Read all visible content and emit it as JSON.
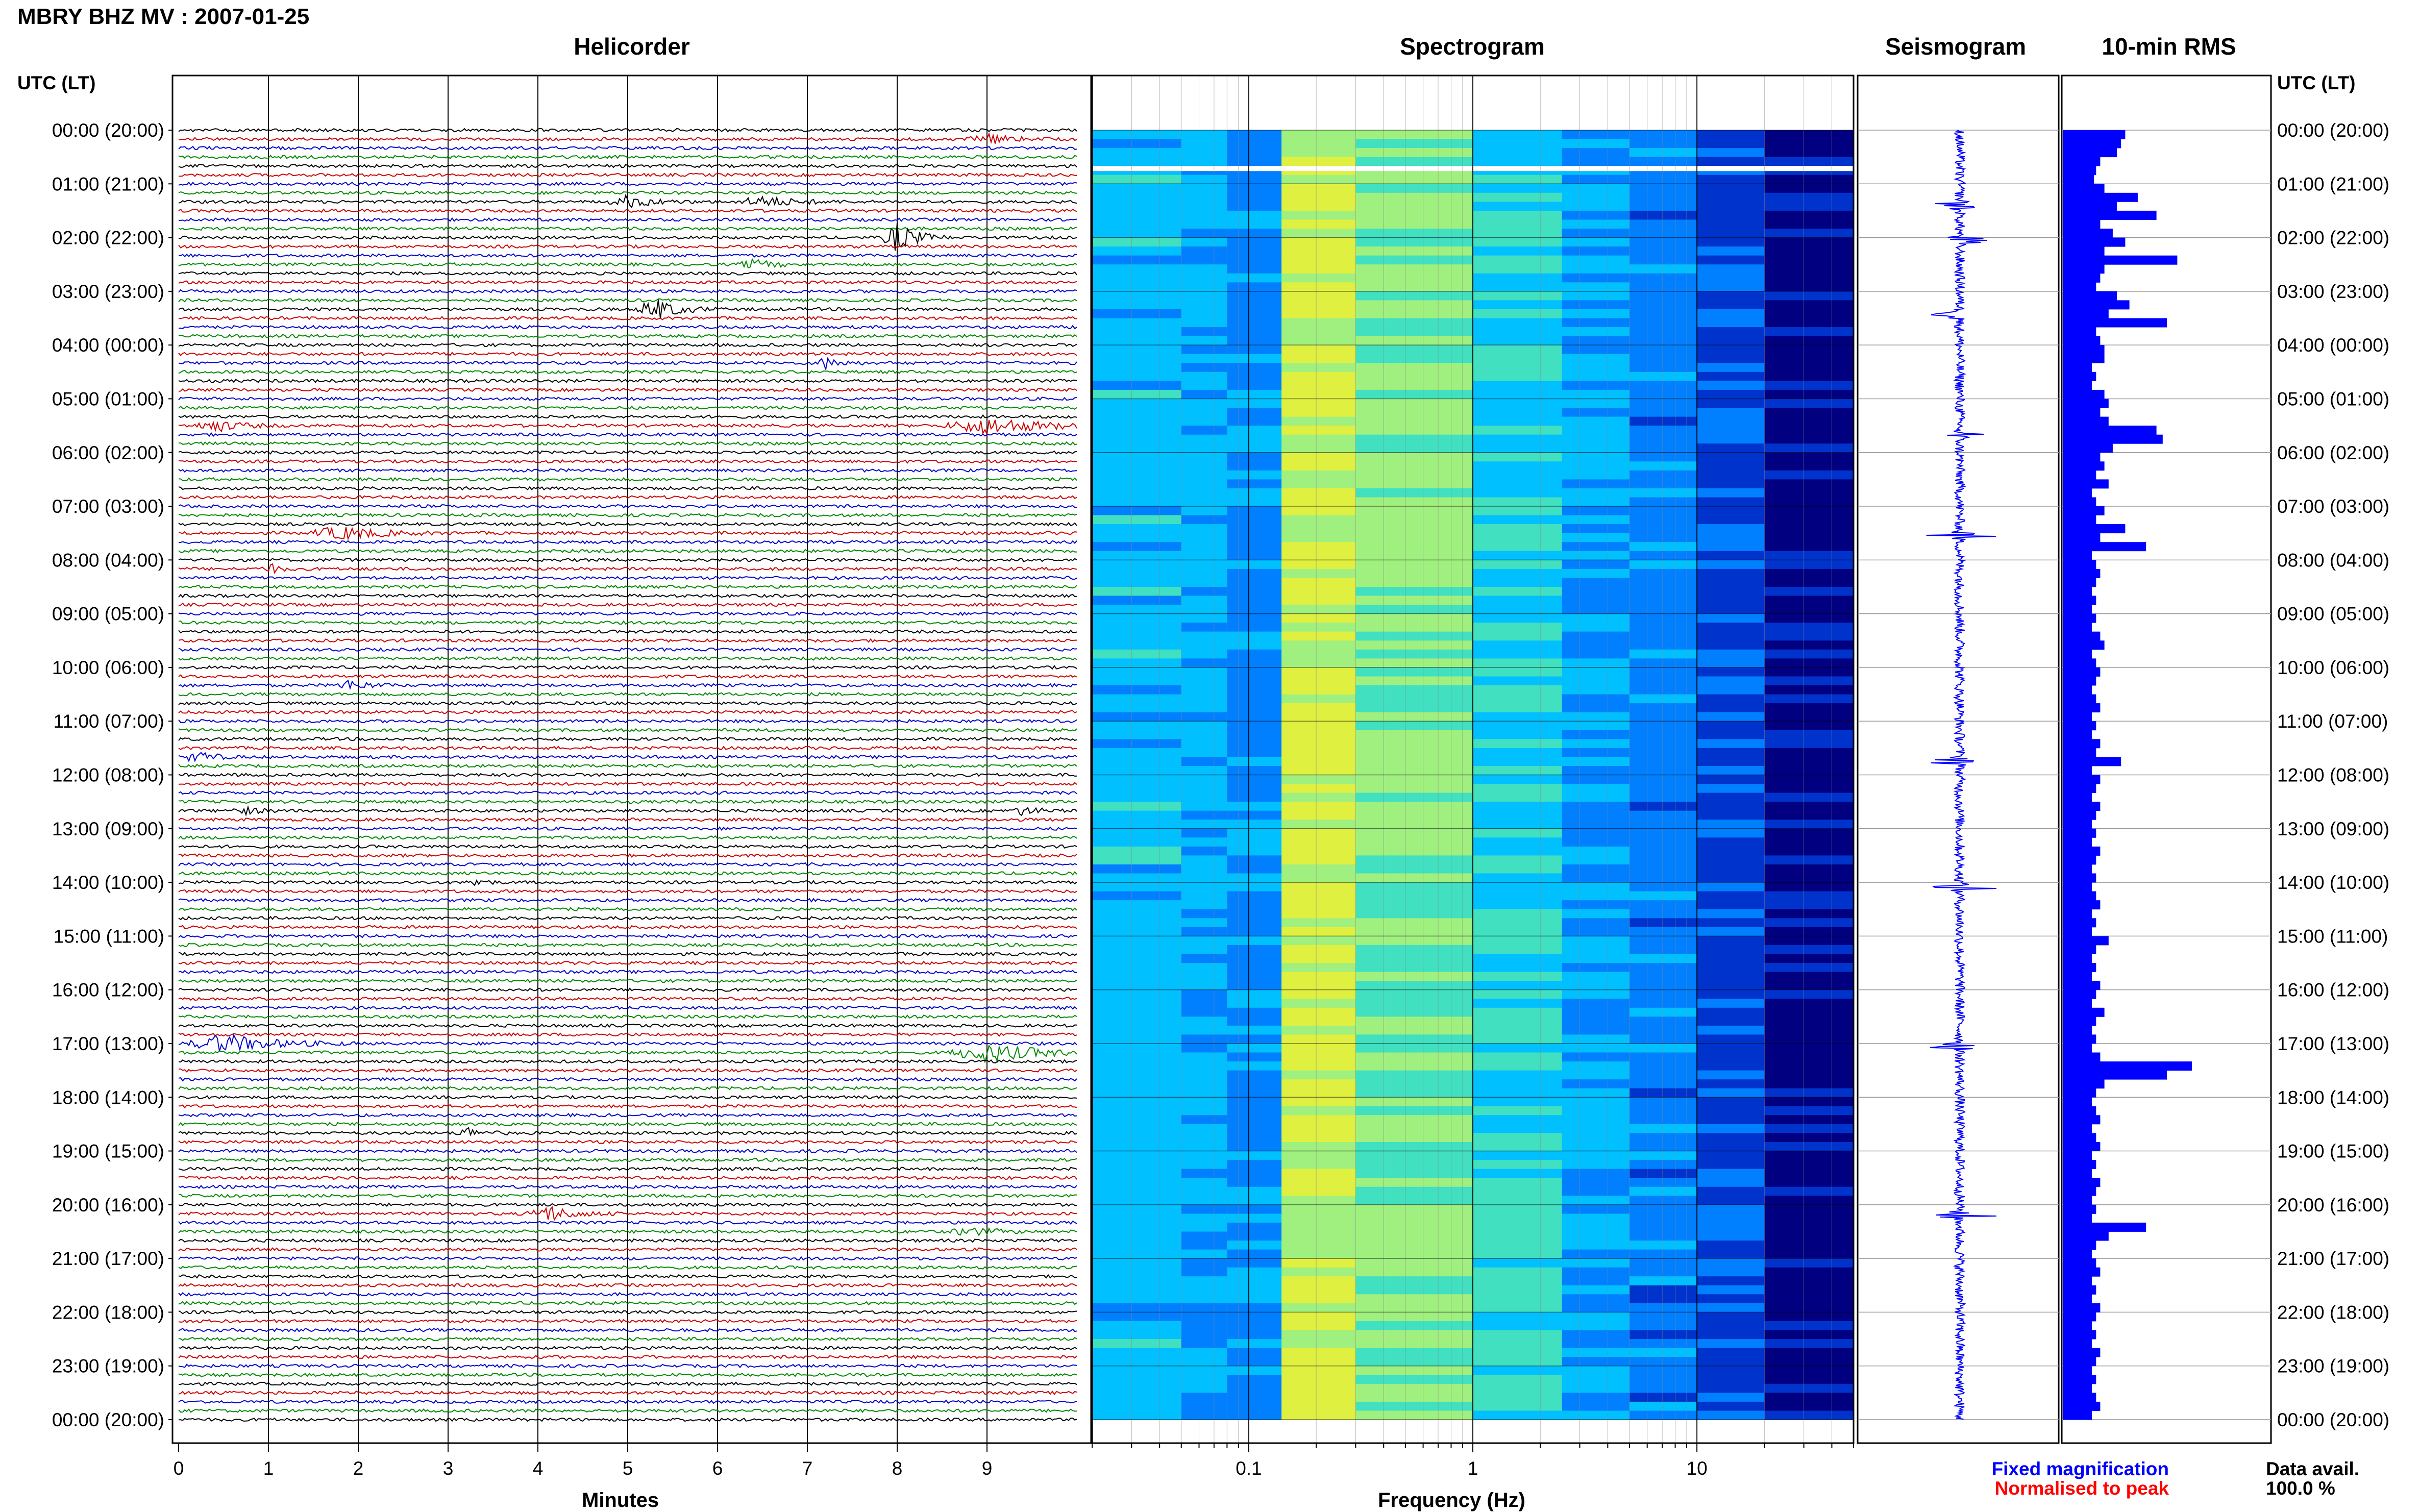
{
  "header": {
    "title": "MBRY BHZ MV : 2007-01-25",
    "utc_label_left": "UTC (LT)",
    "utc_label_right": "UTC (LT)"
  },
  "panels": {
    "helicorder": "Helicorder",
    "spectrogram": "Spectrogram",
    "seismogram": "Seismogram",
    "rms": "10-min RMS"
  },
  "axes": {
    "minutes_label": "Minutes",
    "frequency_label": "Frequency (Hz)"
  },
  "legend": {
    "fixed": "Fixed magnification",
    "normalised": "Normalised to peak",
    "fixed_color": "#0000ff",
    "normalised_color": "#ff0000"
  },
  "data_availability": {
    "label": "Data avail.",
    "value": "100.0 %"
  },
  "chart_data": [
    {
      "type": "line",
      "name": "helicorder",
      "title": "Helicorder",
      "xlabel": "Minutes",
      "x_ticks": [
        "0",
        "1",
        "2",
        "3",
        "4",
        "5",
        "6",
        "7",
        "8",
        "9"
      ],
      "xlim": [
        0,
        10
      ],
      "row_labels": [
        "00:00 (20:00)",
        "01:00 (21:00)",
        "02:00 (22:00)",
        "03:00 (23:00)",
        "04:00 (00:00)",
        "05:00 (01:00)",
        "06:00 (02:00)",
        "07:00 (03:00)",
        "08:00 (04:00)",
        "09:00 (05:00)",
        "10:00 (06:00)",
        "11:00 (07:00)",
        "12:00 (08:00)",
        "13:00 (09:00)",
        "14:00 (10:00)",
        "15:00 (11:00)",
        "16:00 (12:00)",
        "17:00 (13:00)",
        "18:00 (14:00)",
        "19:00 (15:00)",
        "20:00 (16:00)",
        "21:00 (17:00)",
        "22:00 (18:00)",
        "23:00 (19:00)",
        "00:00 (20:00)"
      ],
      "trace_colors": [
        "#000000",
        "#cc0000",
        "#0000cc",
        "#008800"
      ],
      "traces_per_hour": 6,
      "events": [
        {
          "hour": 0.1,
          "minute": 9.0,
          "amp": 0.4,
          "width": 0.8
        },
        {
          "hour": 1.4,
          "minute": 5.0,
          "amp": 0.5,
          "width": 0.8
        },
        {
          "hour": 1.3,
          "minute": 6.5,
          "amp": 0.45,
          "width": 1.0
        },
        {
          "hour": 1.95,
          "minute": 8.0,
          "amp": 1.3,
          "width": 0.6
        },
        {
          "hour": 2.5,
          "minute": 6.4,
          "amp": 0.4,
          "width": 0.6
        },
        {
          "hour": 3.35,
          "minute": 5.3,
          "amp": 1.0,
          "width": 0.7
        },
        {
          "hour": 4.35,
          "minute": 7.2,
          "amp": 0.5,
          "width": 0.5
        },
        {
          "hour": 5.5,
          "minute": 0.4,
          "amp": 0.5,
          "width": 0.8
        },
        {
          "hour": 5.5,
          "minute": 9.0,
          "amp": 0.7,
          "width": 1.8
        },
        {
          "hour": 7.5,
          "minute": 1.8,
          "amp": 0.55,
          "width": 1.3
        },
        {
          "hour": 8.2,
          "minute": 1.0,
          "amp": 0.5,
          "width": 0.3
        },
        {
          "hour": 10.3,
          "minute": 1.9,
          "amp": 0.4,
          "width": 0.6
        },
        {
          "hour": 11.7,
          "minute": 0.2,
          "amp": 0.55,
          "width": 0.5
        },
        {
          "hour": 12.7,
          "minute": 0.7,
          "amp": 0.35,
          "width": 0.5
        },
        {
          "hour": 12.65,
          "minute": 9.4,
          "amp": 0.35,
          "width": 0.5
        },
        {
          "hour": 14.05,
          "minute": 3.3,
          "amp": 0.45,
          "width": 0.3
        },
        {
          "hour": 17.05,
          "minute": 0.5,
          "amp": 0.8,
          "width": 1.5
        },
        {
          "hour": 17.1,
          "minute": 9.0,
          "amp": 0.8,
          "width": 1.6
        },
        {
          "hour": 18.7,
          "minute": 3.2,
          "amp": 0.45,
          "width": 0.5
        },
        {
          "hour": 20.1,
          "minute": 4.1,
          "amp": 0.7,
          "width": 0.8
        },
        {
          "hour": 20.5,
          "minute": 8.8,
          "amp": 0.35,
          "width": 0.8
        }
      ]
    },
    {
      "type": "heatmap",
      "name": "spectrogram",
      "title": "Spectrogram",
      "xlabel": "Frequency (Hz)",
      "x_scale": "log",
      "xlim": [
        0.02,
        50
      ],
      "x_ticks": [
        "0.1",
        "1",
        "10"
      ],
      "y_range_hours": [
        0,
        24
      ],
      "colormap": [
        "#000080",
        "#0033cc",
        "#0080ff",
        "#00c0ff",
        "#40e0c0",
        "#a0f080",
        "#e0f040"
      ]
    },
    {
      "type": "line",
      "name": "seismogram",
      "title": "Seismogram",
      "y_range_hours": [
        0,
        24
      ],
      "spikes_hours": [
        1.4,
        2.05,
        3.45,
        5.65,
        7.55,
        11.75,
        14.1,
        17.05,
        20.2
      ]
    },
    {
      "type": "bar",
      "name": "10-min RMS",
      "title": "10-min RMS",
      "orientation": "horizontal",
      "bar_color": "#0000ff",
      "y_range_hours": [
        0,
        24
      ],
      "values": [
        0.3,
        0.28,
        0.26,
        0.18,
        0.16,
        0.15,
        0.2,
        0.36,
        0.26,
        0.45,
        0.18,
        0.24,
        0.3,
        0.2,
        0.55,
        0.2,
        0.18,
        0.16,
        0.26,
        0.32,
        0.22,
        0.5,
        0.16,
        0.18,
        0.2,
        0.2,
        0.14,
        0.16,
        0.14,
        0.2,
        0.22,
        0.18,
        0.22,
        0.45,
        0.48,
        0.24,
        0.18,
        0.2,
        0.16,
        0.22,
        0.14,
        0.16,
        0.2,
        0.16,
        0.3,
        0.18,
        0.4,
        0.14,
        0.16,
        0.18,
        0.16,
        0.14,
        0.16,
        0.14,
        0.16,
        0.14,
        0.18,
        0.2,
        0.14,
        0.16,
        0.18,
        0.16,
        0.14,
        0.16,
        0.18,
        0.14,
        0.16,
        0.14,
        0.18,
        0.16,
        0.28,
        0.14,
        0.18,
        0.16,
        0.14,
        0.18,
        0.16,
        0.14,
        0.16,
        0.14,
        0.18,
        0.16,
        0.14,
        0.16,
        0.14,
        0.16,
        0.18,
        0.14,
        0.16,
        0.14,
        0.22,
        0.16,
        0.14,
        0.16,
        0.14,
        0.18,
        0.16,
        0.14,
        0.2,
        0.16,
        0.14,
        0.16,
        0.14,
        0.18,
        0.62,
        0.5,
        0.2,
        0.16,
        0.14,
        0.16,
        0.18,
        0.14,
        0.16,
        0.18,
        0.14,
        0.16,
        0.14,
        0.18,
        0.16,
        0.14,
        0.16,
        0.14,
        0.4,
        0.22,
        0.16,
        0.14,
        0.16,
        0.18,
        0.14,
        0.16,
        0.14,
        0.18,
        0.16,
        0.14,
        0.16,
        0.14,
        0.18,
        0.16,
        0.14,
        0.16,
        0.14,
        0.16,
        0.18,
        0.14
      ],
      "value_units": "relative"
    }
  ]
}
